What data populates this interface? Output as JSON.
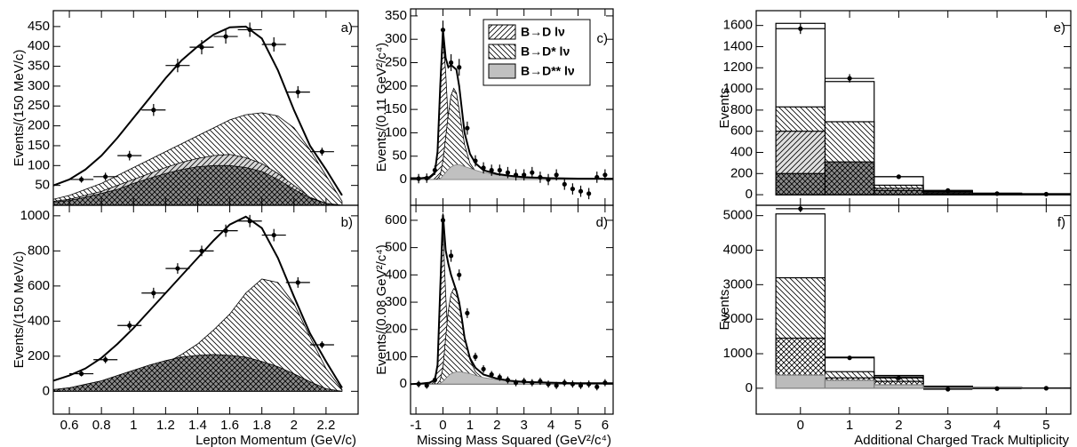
{
  "chart_data": [
    {
      "type": "line",
      "label": "a)",
      "ylabel": "Events/(150 MeV/c)",
      "xlim": [
        0.5,
        2.4
      ],
      "ylim": [
        0,
        490
      ],
      "yticks": [
        50,
        100,
        150,
        200,
        250,
        300,
        350,
        400,
        450
      ],
      "x": [
        0.5,
        0.6,
        0.7,
        0.8,
        0.9,
        1,
        1.1,
        1.2,
        1.3,
        1.4,
        1.5,
        1.6,
        1.7,
        1.8,
        1.9,
        2,
        2.1,
        2.2,
        2.3,
        2.4
      ],
      "series": [
        {
          "style": "area",
          "pattern": "diag-left",
          "color": "#000000",
          "fill": "#ffffff",
          "values": [
            15,
            25,
            40,
            55,
            75,
            95,
            115,
            135,
            155,
            175,
            195,
            215,
            228,
            233,
            225,
            195,
            140,
            75,
            10,
            null
          ]
        },
        {
          "style": "area",
          "pattern": "diag-right",
          "color": "#000000",
          "fill": "#d8d8d8",
          "values": [
            10,
            15,
            25,
            35,
            50,
            65,
            80,
            95,
            108,
            118,
            125,
            128,
            120,
            105,
            80,
            50,
            20,
            5,
            0,
            null
          ]
        },
        {
          "style": "area",
          "pattern": "cross",
          "color": "#000000",
          "fill": "#8c8c8c",
          "values": [
            8,
            12,
            20,
            30,
            40,
            55,
            68,
            80,
            90,
            97,
            100,
            100,
            95,
            85,
            65,
            40,
            18,
            5,
            0,
            null
          ]
        },
        {
          "style": "line",
          "color": "#000000",
          "values": [
            50,
            65,
            90,
            125,
            170,
            220,
            270,
            320,
            365,
            400,
            430,
            448,
            450,
            420,
            340,
            240,
            150,
            90,
            25,
            null
          ]
        }
      ],
      "points": {
        "color": "#000000",
        "xerr": 0.075,
        "x": [
          0.675,
          0.825,
          0.975,
          1.125,
          1.275,
          1.425,
          1.575,
          1.725,
          1.875,
          2.025,
          2.175
        ],
        "values": [
          65,
          72,
          125,
          240,
          352,
          398,
          425,
          442,
          405,
          285,
          135
        ],
        "errors": [
          8,
          10,
          12,
          15,
          17,
          18,
          18,
          18,
          18,
          15,
          10
        ]
      }
    },
    {
      "type": "line",
      "label": "b)",
      "ylabel": "Events/(150 MeV/c)",
      "xlabel": "Lepton Momentum (GeV/c)",
      "xlim": [
        0.5,
        2.4
      ],
      "ylim": [
        -130,
        1060
      ],
      "xticks": [
        0.6,
        0.8,
        1,
        1.2,
        1.4,
        1.6,
        1.8,
        2,
        2.2
      ],
      "yticks": [
        0,
        200,
        400,
        600,
        800,
        1000
      ],
      "x": [
        0.5,
        0.6,
        0.7,
        0.8,
        0.9,
        1,
        1.1,
        1.2,
        1.3,
        1.4,
        1.5,
        1.6,
        1.7,
        1.8,
        1.9,
        2,
        2.1,
        2.2,
        2.3,
        2.4
      ],
      "series": [
        {
          "style": "area",
          "pattern": "diag-left",
          "color": "#000000",
          "fill": "#ffffff",
          "values": [
            10,
            20,
            30,
            45,
            65,
            90,
            120,
            160,
            210,
            270,
            350,
            440,
            560,
            640,
            620,
            500,
            310,
            130,
            10,
            null
          ]
        },
        {
          "style": "area",
          "pattern": "cross",
          "color": "#000000",
          "fill": "#8c8c8c",
          "values": [
            10,
            20,
            40,
            60,
            90,
            120,
            150,
            175,
            195,
            205,
            210,
            205,
            195,
            170,
            140,
            100,
            55,
            15,
            0,
            null
          ]
        },
        {
          "style": "line",
          "color": "#000000",
          "values": [
            60,
            90,
            130,
            190,
            270,
            360,
            460,
            560,
            660,
            760,
            860,
            950,
            995,
            930,
            760,
            540,
            330,
            170,
            20,
            null
          ]
        }
      ],
      "points": {
        "color": "#000000",
        "xerr": 0.075,
        "x": [
          0.675,
          0.825,
          0.975,
          1.125,
          1.275,
          1.425,
          1.575,
          1.725,
          1.875,
          2.025,
          2.175
        ],
        "values": [
          100,
          180,
          375,
          560,
          700,
          800,
          915,
          970,
          890,
          620,
          265
        ],
        "errors": [
          15,
          20,
          25,
          30,
          30,
          30,
          35,
          35,
          35,
          30,
          20
        ]
      }
    },
    {
      "type": "line",
      "label": "c)",
      "ylabel": "Events/(0.11 GeV²/c⁴)",
      "xlim": [
        -1.2,
        6.3
      ],
      "ylim": [
        -55,
        365
      ],
      "legend": "upper right",
      "yticks": [
        0,
        50,
        100,
        150,
        200,
        250,
        300,
        350
      ],
      "x": [
        -1.2,
        -0.8,
        -0.5,
        -0.3,
        -0.2,
        -0.1,
        0,
        0.1,
        0.2,
        0.3,
        0.4,
        0.5,
        0.6,
        0.7,
        0.8,
        1,
        1.2,
        1.5,
        2,
        2.5,
        3,
        4,
        5,
        6.3
      ],
      "series": [
        {
          "name": "B→D lν",
          "style": "area",
          "pattern": "diag-right",
          "color": "#000000",
          "fill": "#ffffff",
          "values": [
            0,
            0,
            2,
            12,
            55,
            190,
            300,
            230,
            120,
            40,
            10,
            3,
            1,
            0,
            0,
            0,
            0,
            0,
            0,
            0,
            0,
            0,
            0,
            0
          ]
        },
        {
          "name": "B→D* lν",
          "style": "area",
          "pattern": "diag-left",
          "color": "#000000",
          "fill": "#ffffff",
          "values": [
            0,
            0,
            0,
            0,
            2,
            10,
            40,
            90,
            140,
            180,
            195,
            185,
            150,
            110,
            75,
            35,
            18,
            8,
            3,
            1,
            0,
            0,
            0,
            0
          ]
        },
        {
          "name": "B→D** lν",
          "style": "area",
          "pattern": "none",
          "color": "#808080",
          "fill": "#c0c0c0",
          "values": [
            0,
            0,
            0,
            0,
            0,
            2,
            8,
            15,
            22,
            27,
            30,
            32,
            32,
            30,
            28,
            24,
            20,
            15,
            10,
            6,
            3,
            2,
            1,
            0
          ]
        },
        {
          "style": "line",
          "color": "#000000",
          "values": [
            3,
            3,
            5,
            15,
            60,
            200,
            320,
            260,
            240,
            245,
            240,
            235,
            200,
            150,
            100,
            55,
            35,
            20,
            12,
            8,
            5,
            3,
            2,
            2
          ]
        }
      ],
      "points": {
        "color": "#000000",
        "xerr": 0.05,
        "x": [
          -0.9,
          -0.6,
          -0.3,
          0,
          0.3,
          0.6,
          0.9,
          1.2,
          1.5,
          1.8,
          2.1,
          2.4,
          2.7,
          3,
          3.3,
          3.6,
          3.9,
          4.2,
          4.5,
          4.8,
          5.1,
          5.4,
          5.7,
          6
        ],
        "values": [
          2,
          3,
          20,
          320,
          250,
          240,
          110,
          40,
          25,
          20,
          20,
          15,
          10,
          10,
          15,
          5,
          0,
          10,
          -10,
          -20,
          -25,
          -30,
          5,
          10
        ],
        "errors": [
          10,
          10,
          10,
          20,
          18,
          18,
          14,
          12,
          12,
          12,
          12,
          12,
          12,
          12,
          12,
          12,
          12,
          12,
          12,
          12,
          12,
          12,
          12,
          12
        ]
      }
    },
    {
      "type": "line",
      "label": "d)",
      "ylabel": "Events/(0.08 GeV²/c⁴)",
      "xlabel": "Missing Mass Squared (GeV²/c⁴)",
      "xlim": [
        -1.2,
        6.3
      ],
      "ylim": [
        -110,
        655
      ],
      "xticks": [
        -1,
        0,
        1,
        2,
        3,
        4,
        5,
        6
      ],
      "yticks": [
        0,
        100,
        200,
        300,
        400,
        500,
        600
      ],
      "x": [
        -1.2,
        -0.8,
        -0.5,
        -0.3,
        -0.2,
        -0.1,
        0,
        0.1,
        0.2,
        0.3,
        0.4,
        0.5,
        0.6,
        0.7,
        0.8,
        1,
        1.2,
        1.5,
        2,
        2.5,
        3,
        4,
        5,
        6.3
      ],
      "series": [
        {
          "style": "area",
          "pattern": "diag-right",
          "color": "#000000",
          "fill": "#ffffff",
          "values": [
            0,
            0,
            3,
            15,
            70,
            330,
            560,
            330,
            140,
            40,
            10,
            3,
            1,
            0,
            0,
            0,
            0,
            0,
            0,
            0,
            0,
            0,
            0,
            0
          ]
        },
        {
          "style": "area",
          "pattern": "diag-left",
          "color": "#000000",
          "fill": "#ffffff",
          "values": [
            0,
            0,
            0,
            0,
            2,
            15,
            60,
            170,
            270,
            330,
            350,
            340,
            290,
            230,
            170,
            90,
            45,
            20,
            8,
            3,
            1,
            0,
            0,
            0
          ]
        },
        {
          "style": "area",
          "pattern": "none",
          "color": "#808080",
          "fill": "#c0c0c0",
          "values": [
            0,
            0,
            0,
            0,
            0,
            3,
            10,
            20,
            30,
            38,
            42,
            45,
            45,
            44,
            42,
            38,
            32,
            24,
            16,
            10,
            6,
            3,
            2,
            1
          ]
        },
        {
          "style": "line",
          "color": "#000000",
          "values": [
            0,
            2,
            5,
            15,
            70,
            350,
            620,
            490,
            440,
            400,
            370,
            340,
            300,
            240,
            170,
            95,
            60,
            35,
            20,
            12,
            8,
            5,
            3,
            3
          ]
        }
      ],
      "points": {
        "color": "#000000",
        "xerr": 0.05,
        "x": [
          -0.9,
          -0.6,
          -0.3,
          0,
          0.3,
          0.6,
          0.9,
          1.2,
          1.5,
          1.8,
          2.1,
          2.4,
          2.7,
          3,
          3.3,
          3.6,
          3.9,
          4.2,
          4.5,
          4.8,
          5.1,
          5.4,
          5.7,
          6
        ],
        "values": [
          0,
          -5,
          15,
          600,
          470,
          400,
          260,
          100,
          55,
          35,
          25,
          15,
          5,
          10,
          5,
          10,
          0,
          -5,
          5,
          0,
          -5,
          0,
          -10,
          5
        ],
        "errors": [
          12,
          12,
          14,
          25,
          22,
          20,
          18,
          15,
          14,
          13,
          13,
          13,
          13,
          13,
          13,
          13,
          13,
          13,
          13,
          13,
          13,
          13,
          13,
          13
        ]
      }
    },
    {
      "type": "histogram",
      "label": "e)",
      "ylabel": "Events",
      "xlim": [
        -0.9,
        5.5
      ],
      "ylim": [
        -100,
        1740
      ],
      "yticks": [
        0,
        200,
        400,
        600,
        800,
        1000,
        1200,
        1400,
        1600
      ],
      "bins": [
        -0.5,
        0.5,
        1.5,
        2.5,
        3.5,
        4.5,
        5.5
      ],
      "series": [
        {
          "pattern": "none",
          "color": "#000000",
          "fill": "#ffffff",
          "values": [
            1620,
            1070,
            170,
            40,
            15,
            10
          ]
        },
        {
          "pattern": "diag-left",
          "color": "#000000",
          "fill": "#ffffff",
          "values": [
            830,
            690,
            90,
            30,
            10,
            5
          ]
        },
        {
          "pattern": "diag-right",
          "color": "#000000",
          "fill": "#e0e0e0",
          "values": [
            600,
            300,
            60,
            20,
            5,
            5
          ]
        },
        {
          "pattern": "cross",
          "color": "#000000",
          "fill": "#8c8c8c",
          "values": [
            200,
            310,
            40,
            10,
            5,
            2
          ]
        }
      ],
      "points": {
        "color": "#000000",
        "values": [
          1570,
          1100,
          170,
          40,
          10,
          5
        ],
        "errors": [
          50,
          40,
          20,
          10,
          5,
          5
        ]
      }
    },
    {
      "type": "histogram",
      "label": "f)",
      "ylabel": "Events",
      "xlabel": "Additional Charged Track Multiplicity",
      "xlim": [
        -0.9,
        5.5
      ],
      "ylim": [
        -750,
        5300
      ],
      "xticks": [
        0,
        1,
        2,
        3,
        4,
        5
      ],
      "yticks": [
        0,
        1000,
        2000,
        3000,
        4000,
        5000
      ],
      "bins": [
        -0.5,
        0.5,
        1.5,
        2.5,
        3.5,
        4.5,
        5.5
      ],
      "series": [
        {
          "pattern": "none",
          "color": "#000000",
          "fill": "#ffffff",
          "values": [
            5050,
            900,
            370,
            60,
            20,
            10
          ]
        },
        {
          "pattern": "diag-left",
          "color": "#000000",
          "fill": "#ffffff",
          "values": [
            3200,
            480,
            330,
            50,
            15,
            5
          ]
        },
        {
          "pattern": "cross",
          "color": "#000000",
          "fill": "#ffffff",
          "values": [
            1450,
            300,
            200,
            30,
            10,
            5
          ]
        },
        {
          "pattern": "none",
          "color": "#808080",
          "fill": "#bbbbbb",
          "values": [
            380,
            230,
            100,
            20,
            5,
            2
          ]
        }
      ],
      "points": {
        "color": "#000000",
        "values": [
          5200,
          880,
          300,
          -30,
          -10,
          0
        ],
        "errors": [
          80,
          40,
          30,
          20,
          10,
          10
        ]
      }
    }
  ]
}
